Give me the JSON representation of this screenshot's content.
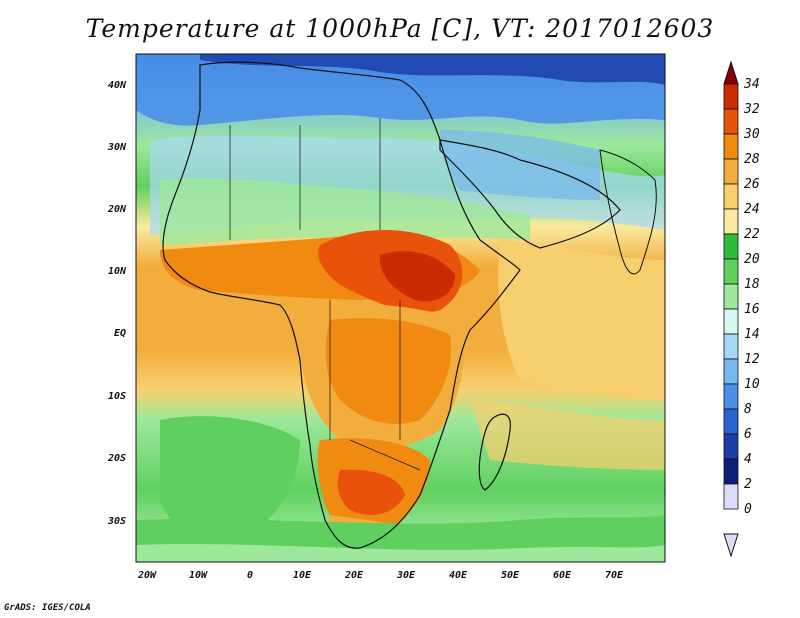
{
  "title": "Temperature at 1000hPa [C], VT: 2017012603",
  "footer": "GrADS: IGES/COLA",
  "map": {
    "lat_labels": [
      "40N",
      "30N",
      "20N",
      "10N",
      "EQ",
      "10S",
      "20S",
      "30S"
    ],
    "lon_labels": [
      "20W",
      "10W",
      "0",
      "10E",
      "20E",
      "30E",
      "40E",
      "50E",
      "60E",
      "70E"
    ]
  },
  "colorbar": {
    "levels": [
      "34",
      "32",
      "30",
      "28",
      "26",
      "24",
      "22",
      "20",
      "18",
      "16",
      "14",
      "12",
      "10",
      "8",
      "6",
      "4",
      "2",
      "0"
    ],
    "colors": [
      "#8a0000",
      "#cc2a00",
      "#e8520a",
      "#f08a10",
      "#f3ad3c",
      "#f8cf6e",
      "#fbeaa0",
      "#2fbb3c",
      "#5fd05f",
      "#9de89a",
      "#d9f7ef",
      "#a8d8f8",
      "#77b8f0",
      "#4a90e8",
      "#2b64d2",
      "#1b3ea8",
      "#0f1f78",
      "#dcdcf8"
    ]
  }
}
